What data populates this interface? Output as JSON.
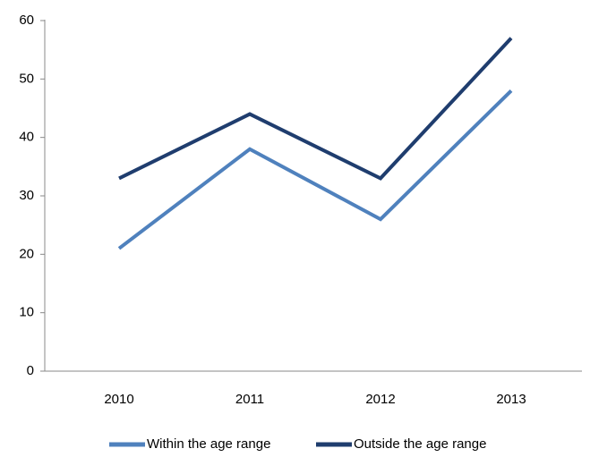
{
  "chart_data": {
    "type": "line",
    "categories": [
      "2010",
      "2011",
      "2012",
      "2013"
    ],
    "series": [
      {
        "name": "Within the age range",
        "color": "#4f81bd",
        "values": [
          21,
          38,
          26,
          48
        ]
      },
      {
        "name": "Outside the age range",
        "color": "#1f3d6e",
        "values": [
          33,
          44,
          33,
          57
        ]
      }
    ],
    "ylim": [
      0,
      60
    ],
    "yticks": [
      0,
      10,
      20,
      30,
      40,
      50,
      60
    ],
    "grid": false,
    "legend": "bottom"
  }
}
